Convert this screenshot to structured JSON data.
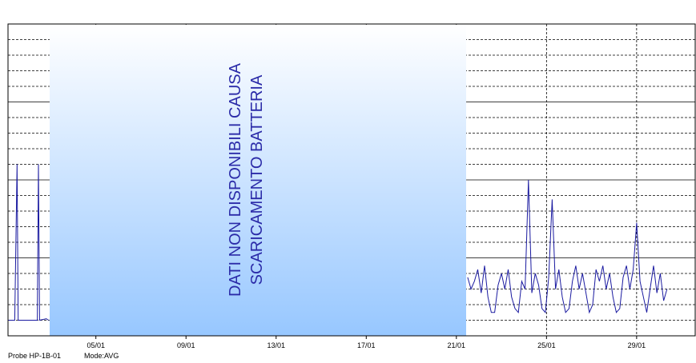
{
  "chart_data": {
    "type": "line",
    "annotation": [
      "DATI NON DISPONIBILI CAUSA",
      "SCARICAMENTO BATTERIA"
    ],
    "footer": [
      "Probe HP-1B-01",
      "Mode:AVG"
    ],
    "xlim": [
      1.1,
      31.6
    ],
    "xticks": [
      {
        "value": 5,
        "label": "05/01"
      },
      {
        "value": 9,
        "label": "09/01"
      },
      {
        "value": 13,
        "label": "13/01"
      },
      {
        "value": 17,
        "label": "17/01"
      },
      {
        "value": 21,
        "label": "21/01"
      },
      {
        "value": 25,
        "label": "25/01"
      },
      {
        "value": 29,
        "label": "29/01"
      }
    ],
    "ylim": [
      0,
      4
    ],
    "yticks": [
      0.2,
      0.4,
      0.6,
      0.8,
      1,
      1.2,
      1.4,
      1.6,
      1.8,
      2,
      2.2,
      2.4,
      2.6,
      2.8,
      3,
      3.2,
      3.4,
      3.6,
      3.8
    ],
    "grid": true,
    "x": [
      1.1,
      1.4,
      1.5,
      1.55,
      1.6,
      1.9,
      2.3,
      2.4,
      2.45,
      2.5,
      2.8,
      2.9,
      12,
      21.5,
      21.65,
      21.8,
      21.95,
      22.1,
      22.25,
      22.4,
      22.55,
      22.7,
      22.85,
      23,
      23.15,
      23.3,
      23.45,
      23.6,
      23.75,
      23.9,
      24.05,
      24.2,
      24.35,
      24.5,
      24.65,
      24.8,
      24.95,
      25.1,
      25.25,
      25.4,
      25.55,
      25.7,
      25.85,
      26,
      26.15,
      26.3,
      26.45,
      26.6,
      26.75,
      26.9,
      27.05,
      27.2,
      27.35,
      27.5,
      27.65,
      27.8,
      27.95,
      28.1,
      28.25,
      28.4,
      28.55,
      28.7,
      28.85,
      29,
      29.15,
      29.3,
      29.45,
      29.6,
      29.75,
      29.9,
      30.05,
      30.2,
      30.35
    ],
    "series": [
      {
        "color": "#1a1aa0",
        "values": [
          0.2,
          0.2,
          2.2,
          0.2,
          0.2,
          0.2,
          0.2,
          0.2,
          2.2,
          0.2,
          0.22,
          0.2,
          null,
          0.75,
          0.6,
          0.7,
          0.85,
          0.55,
          0.9,
          0.5,
          0.3,
          0.3,
          0.65,
          0.8,
          0.6,
          0.85,
          0.5,
          0.35,
          0.3,
          0.7,
          0.6,
          2.0,
          0.55,
          0.8,
          0.65,
          0.35,
          0.3,
          0.75,
          1.75,
          0.6,
          0.85,
          0.5,
          0.3,
          0.35,
          0.7,
          0.9,
          0.6,
          0.8,
          0.55,
          0.3,
          0.4,
          0.85,
          0.7,
          0.9,
          0.6,
          0.8,
          0.5,
          0.3,
          0.35,
          0.75,
          0.9,
          0.6,
          0.85,
          1.45,
          0.7,
          0.5,
          0.3,
          0.6,
          0.9,
          0.55,
          0.8,
          0.45,
          0.6
        ]
      }
    ]
  }
}
